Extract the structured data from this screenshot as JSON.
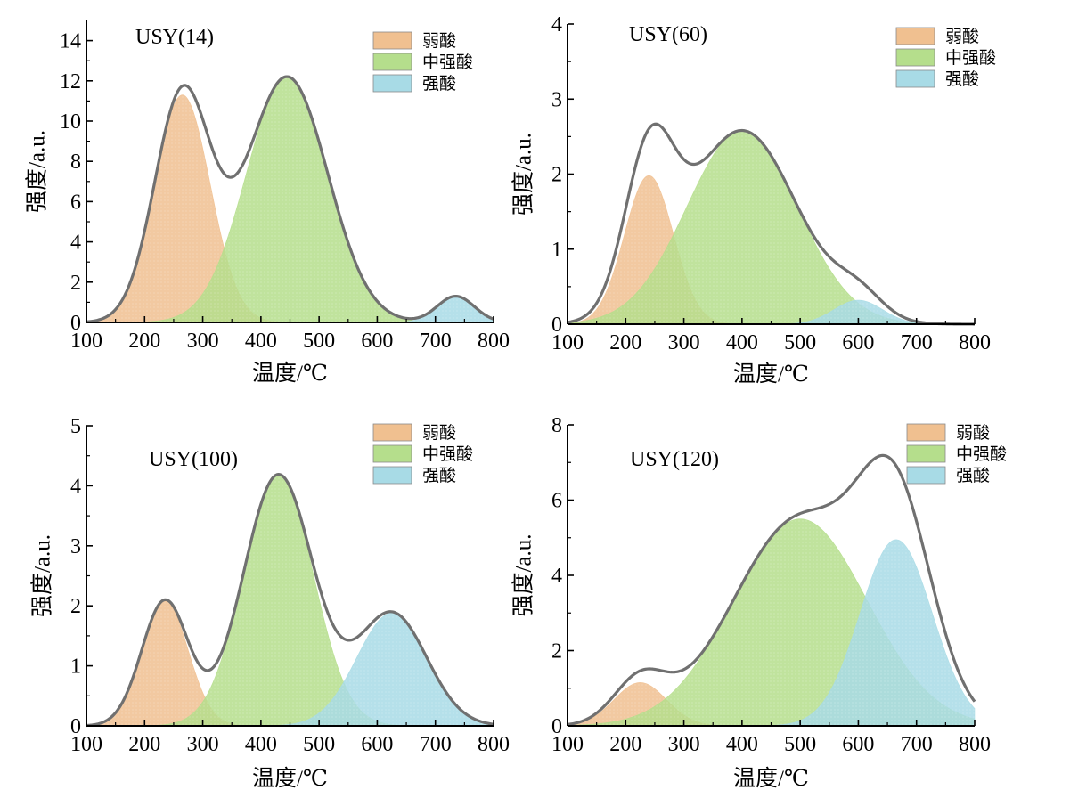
{
  "figure": {
    "type": "4-panel TPD deconvolution"
  },
  "chart_data": [
    {
      "type": "area",
      "title": "USY(14)",
      "xlabel": "温度/℃",
      "ylabel": "强度/a.u.",
      "xlim": [
        100,
        800
      ],
      "ylim": [
        0,
        15
      ],
      "xticks": [
        100,
        200,
        300,
        400,
        500,
        600,
        700,
        800
      ],
      "yticks": [
        0,
        2,
        4,
        6,
        8,
        10,
        12,
        14
      ],
      "legend_position": "top-right",
      "series": [
        {
          "name": "弱酸",
          "color": "#f0c090",
          "peak_temp": 265,
          "peak_height": 11.3,
          "width": 48
        },
        {
          "name": "中强酸",
          "color": "#b5de8c",
          "peak_temp": 445,
          "peak_height": 12.2,
          "width": 70
        },
        {
          "name": "强酸",
          "color": "#a8dbe6",
          "peak_temp": 735,
          "peak_height": 1.3,
          "width": 32
        }
      ],
      "envelope_color": "#707070"
    },
    {
      "type": "area",
      "title": "USY(60)",
      "xlabel": "温度/℃",
      "ylabel": "强度/a.u.",
      "xlim": [
        100,
        800
      ],
      "ylim": [
        0,
        4
      ],
      "xticks": [
        100,
        200,
        300,
        400,
        500,
        600,
        700,
        800
      ],
      "yticks": [
        0,
        1,
        2,
        3,
        4
      ],
      "legend_position": "top-right",
      "series": [
        {
          "name": "弱酸",
          "color": "#f0c090",
          "peak_temp": 240,
          "peak_height": 1.98,
          "width": 42
        },
        {
          "name": "中强酸",
          "color": "#b5de8c",
          "peak_temp": 400,
          "peak_height": 2.58,
          "width": 95
        },
        {
          "name": "强酸",
          "color": "#a8dbe6",
          "peak_temp": 600,
          "peak_height": 0.32,
          "width": 42
        }
      ],
      "envelope_color": "#707070"
    },
    {
      "type": "area",
      "title": "USY(100)",
      "xlabel": "温度/℃",
      "ylabel": "强度/a.u.",
      "xlim": [
        100,
        800
      ],
      "ylim": [
        0,
        5
      ],
      "xticks": [
        100,
        200,
        300,
        400,
        500,
        600,
        700,
        800
      ],
      "yticks": [
        0,
        1,
        2,
        3,
        4,
        5
      ],
      "legend_position": "top-right",
      "series": [
        {
          "name": "弱酸",
          "color": "#f0c090",
          "peak_temp": 235,
          "peak_height": 2.08,
          "width": 40
        },
        {
          "name": "中强酸",
          "color": "#b5de8c",
          "peak_temp": 430,
          "peak_height": 4.18,
          "width": 60
        },
        {
          "name": "强酸",
          "color": "#a8dbe6",
          "peak_temp": 625,
          "peak_height": 1.88,
          "width": 60
        }
      ],
      "envelope_color": "#707070"
    },
    {
      "type": "area",
      "title": "USY(120)",
      "xlabel": "温度/℃",
      "ylabel": "强度/a.u.",
      "xlim": [
        100,
        800
      ],
      "ylim": [
        0,
        8
      ],
      "xticks": [
        100,
        200,
        300,
        400,
        500,
        600,
        700,
        800
      ],
      "yticks": [
        0,
        2,
        4,
        6,
        8
      ],
      "legend_position": "top-right",
      "series": [
        {
          "name": "弱酸",
          "color": "#f0c090",
          "peak_temp": 225,
          "peak_height": 1.15,
          "width": 45
        },
        {
          "name": "中强酸",
          "color": "#b5de8c",
          "peak_temp": 500,
          "peak_height": 5.5,
          "width": 115
        },
        {
          "name": "强酸",
          "color": "#a8dbe6",
          "peak_temp": 665,
          "peak_height": 4.95,
          "width": 62
        }
      ],
      "envelope_color": "#707070"
    }
  ]
}
